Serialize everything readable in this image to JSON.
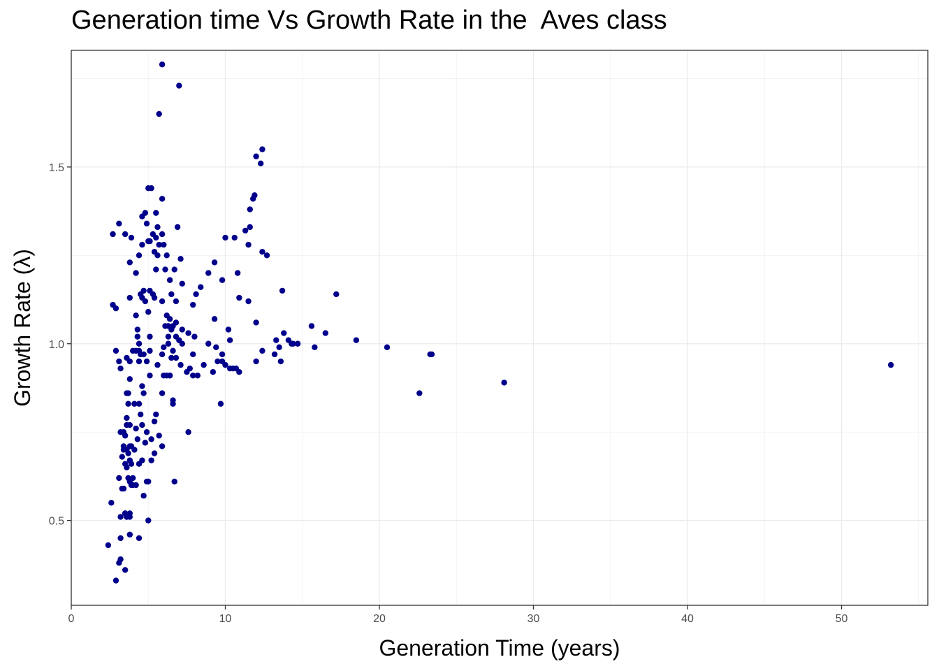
{
  "chart_data": {
    "type": "scatter",
    "title": "Generation time Vs Growth Rate in the  Aves class",
    "xlabel": "Generation Time (years)",
    "ylabel": "Growth Rate (λ)",
    "xlim": [
      0,
      55.6
    ],
    "ylim": [
      0.26,
      1.83
    ],
    "x_ticks": [
      0,
      10,
      20,
      30,
      40,
      50
    ],
    "x_tick_labels": [
      "0",
      "10",
      "20",
      "30",
      "40",
      "50"
    ],
    "y_ticks": [
      0.5,
      1.0,
      1.5
    ],
    "y_tick_labels": [
      "0.5",
      "1.0",
      "1.5"
    ],
    "grid": true,
    "legend": "none",
    "point_color": "#00008B",
    "x": [
      5.9,
      7.0,
      5.7,
      12.4,
      12.0,
      12.3,
      5.2,
      5.0,
      11.9,
      5.9,
      11.8,
      11.6,
      4.8,
      4.6,
      5.5,
      3.1,
      11.6,
      11.3,
      6.9,
      5.6,
      4.9,
      2.7,
      3.5,
      5.9,
      5.3,
      5.5,
      10.0,
      3.9,
      10.6,
      5.1,
      5.0,
      6.0,
      4.6,
      11.5,
      5.7,
      5.4,
      12.4,
      12.7,
      5.6,
      4.4,
      6.2,
      7.1,
      3.8,
      9.3,
      6.7,
      6.1,
      5.5,
      4.2,
      8.9,
      10.8,
      9.8,
      6.4,
      7.2,
      8.4,
      13.7,
      4.7,
      5.1,
      5.3,
      6.5,
      8.1,
      17.2,
      4.5,
      4.6,
      3.8,
      5.4,
      5.9,
      4.8,
      10.9,
      6.8,
      2.7,
      2.9,
      7.9,
      4.2,
      11.5,
      5.0,
      6.2,
      9.3,
      6.4,
      6.8,
      4.3,
      12.0,
      15.6,
      6.1,
      6.3,
      6.6,
      7.2,
      16.5,
      10.2,
      6.5,
      13.8,
      4.3,
      6.8,
      5.1,
      7.6,
      6.3,
      8.0,
      7.0,
      4.4,
      6.3,
      18.5,
      14.1,
      7.2,
      14.4,
      6.0,
      13.3,
      14.7,
      14.3,
      8.9,
      10.3,
      4.0,
      9.4,
      4.4,
      4.2,
      5.1,
      6.6,
      2.9,
      13.5,
      15.8,
      20.5,
      5.9,
      12.4,
      9.8,
      4.5,
      3.6,
      6.5,
      6.8,
      13.2,
      4.7,
      7.9,
      12.0,
      13.6,
      9.5,
      9.8,
      3.1,
      4.4,
      10.0,
      3.8,
      7.1,
      8.6,
      10.3,
      5.6,
      10.5,
      10.9,
      10.7,
      3.2,
      23.4,
      23.3,
      4.9,
      7.7,
      7.5,
      6.4,
      9.2,
      6.4,
      6.2,
      7.9,
      8.2,
      3.8,
      28.1,
      5.1,
      53.2,
      6.0,
      4.6,
      4.7,
      3.7,
      22.6,
      3.6,
      5.9,
      6.6,
      4.1,
      4.4,
      9.7,
      3.7,
      6.6,
      4.5,
      5.5,
      3.6,
      5.4,
      4.6,
      3.6,
      3.8,
      4.2,
      3.4,
      3.2,
      7.6,
      4.9,
      5.7,
      3.5,
      4.8,
      4.3,
      5.2,
      5.9,
      3.4,
      3.6,
      3.8,
      3.9,
      4.1,
      3.4,
      3.7,
      5.4,
      3.3,
      5.2,
      4.6,
      3.8,
      4.4,
      3.9,
      3.5,
      3.6,
      6.7,
      4.9,
      5.0,
      3.1,
      4.0,
      3.7,
      3.8,
      4.2,
      3.9,
      4.0,
      3.3,
      3.4,
      4.7,
      3.8,
      3.5,
      3.6,
      3.8,
      5.0,
      3.2,
      3.8,
      4.4,
      2.6,
      3.5,
      3.6,
      2.4,
      3.2,
      3.2,
      3.1,
      2.9,
      3.5
    ],
    "y": [
      1.79,
      1.73,
      1.65,
      1.55,
      1.53,
      1.51,
      1.44,
      1.44,
      1.42,
      1.41,
      1.41,
      1.38,
      1.37,
      1.36,
      1.37,
      1.34,
      1.33,
      1.32,
      1.33,
      1.33,
      1.34,
      1.31,
      1.31,
      1.31,
      1.31,
      1.3,
      1.3,
      1.3,
      1.3,
      1.29,
      1.29,
      1.28,
      1.28,
      1.28,
      1.28,
      1.26,
      1.26,
      1.25,
      1.25,
      1.25,
      1.25,
      1.24,
      1.23,
      1.23,
      1.21,
      1.21,
      1.21,
      1.2,
      1.2,
      1.2,
      1.18,
      1.18,
      1.17,
      1.16,
      1.15,
      1.15,
      1.15,
      1.14,
      1.14,
      1.14,
      1.14,
      1.14,
      1.13,
      1.13,
      1.13,
      1.12,
      1.12,
      1.13,
      1.12,
      1.11,
      1.1,
      1.11,
      1.08,
      1.12,
      1.09,
      1.08,
      1.07,
      1.07,
      1.06,
      1.04,
      1.06,
      1.05,
      1.05,
      1.05,
      1.05,
      1.04,
      1.03,
      1.04,
      1.04,
      1.03,
      1.02,
      1.02,
      1.02,
      1.03,
      1.02,
      1.02,
      1.01,
      1.0,
      1.0,
      1.01,
      1.01,
      1.0,
      1.0,
      0.99,
      1.01,
      1.0,
      1.0,
      1.0,
      1.01,
      0.98,
      0.99,
      0.98,
      0.98,
      0.98,
      0.98,
      0.98,
      0.99,
      0.99,
      0.99,
      0.97,
      0.98,
      0.97,
      0.97,
      0.96,
      0.96,
      0.96,
      0.97,
      0.97,
      0.97,
      0.95,
      0.95,
      0.95,
      0.95,
      0.95,
      0.95,
      0.94,
      0.95,
      0.94,
      0.94,
      0.93,
      0.94,
      0.93,
      0.92,
      0.93,
      0.93,
      0.97,
      0.97,
      0.95,
      0.93,
      0.92,
      0.91,
      0.92,
      0.91,
      0.91,
      0.91,
      0.91,
      0.9,
      0.89,
      0.91,
      0.94,
      0.91,
      0.88,
      0.86,
      0.86,
      0.86,
      0.86,
      0.86,
      0.84,
      0.83,
      0.83,
      0.83,
      0.83,
      0.83,
      0.8,
      0.8,
      0.79,
      0.78,
      0.77,
      0.77,
      0.77,
      0.76,
      0.75,
      0.75,
      0.75,
      0.75,
      0.74,
      0.74,
      0.72,
      0.73,
      0.73,
      0.71,
      0.71,
      0.7,
      0.71,
      0.71,
      0.7,
      0.7,
      0.69,
      0.69,
      0.68,
      0.67,
      0.67,
      0.67,
      0.66,
      0.66,
      0.66,
      0.65,
      0.61,
      0.61,
      0.61,
      0.62,
      0.62,
      0.62,
      0.61,
      0.6,
      0.6,
      0.6,
      0.59,
      0.59,
      0.57,
      0.52,
      0.52,
      0.51,
      0.51,
      0.5,
      0.51,
      0.46,
      0.45,
      0.55,
      0.52,
      0.51,
      0.43,
      0.45,
      0.39,
      0.38,
      0.33,
      0.36
    ]
  }
}
